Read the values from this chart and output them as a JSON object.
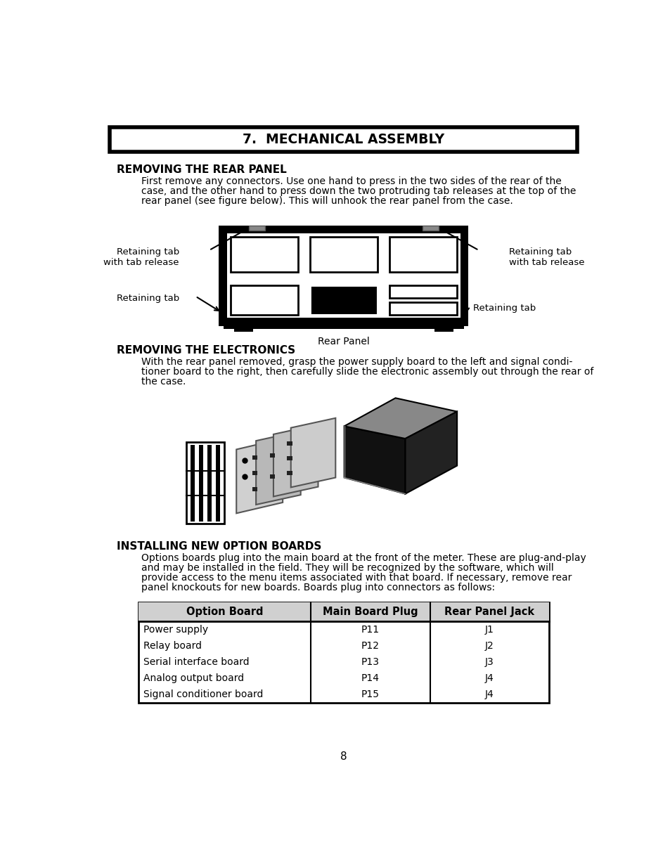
{
  "title": "7.  MECHANICAL ASSEMBLY",
  "page_number": "8",
  "background_color": "#ffffff",
  "section1_heading": "REMOVING THE REAR PANEL",
  "section1_body1": "First remove any connectors. Use one hand to press in the two sides of the rear of the",
  "section1_body2": "case, and the other hand to press down the two protruding tab releases at the top of the",
  "section1_body3": "rear panel (see figure below). This will unhook the rear panel from the case.",
  "rear_panel_label": "Rear Panel",
  "label_top_left": "Retaining tab\nwith tab release",
  "label_top_right": "Retaining tab\nwith tab release",
  "label_bot_left": "Retaining tab",
  "label_bot_right": "Retaining tab",
  "section2_heading": "REMOVING THE ELECTRONICS",
  "section2_body1": "With the rear panel removed, grasp the power supply board to the left and signal condi-",
  "section2_body2": "tioner board to the right, then carefully slide the electronic assembly out through the rear of",
  "section2_body3": "the case.",
  "section3_heading": "INSTALLING NEW 0PTION BOARDS",
  "section3_body1": "Options boards plug into the main board at the front of the meter. These are plug-and-play",
  "section3_body2": "and may be installed in the field. They will be recognized by the software, which will",
  "section3_body3": "provide access to the menu items associated with that board. If necessary, remove rear",
  "section3_body4": "panel knockouts for new boards. Boards plug into connectors as follows:",
  "table_headers": [
    "Option Board",
    "Main Board Plug",
    "Rear Panel Jack"
  ],
  "table_rows": [
    [
      "Power supply",
      "P11",
      "J1"
    ],
    [
      "Relay board",
      "P12",
      "J2"
    ],
    [
      "Serial interface board",
      "P13",
      "J3"
    ],
    [
      "Analog output board",
      "P14",
      "J4"
    ],
    [
      "Signal conditioner board",
      "P15",
      "J4"
    ]
  ],
  "text_color": "#000000",
  "header_bg": "#d3d3d3"
}
